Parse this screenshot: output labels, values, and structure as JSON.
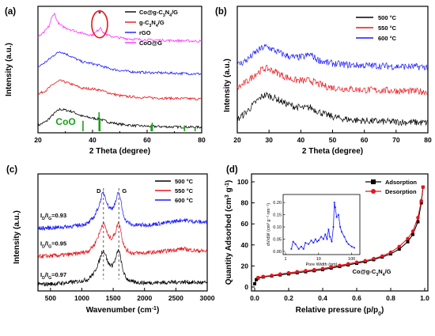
{
  "chart_data": [
    {
      "panel": "(a)",
      "type": "line",
      "xlabel": "2 Theta  (degree)",
      "ylabel": "Intensity (a.u.)",
      "xlim": [
        20,
        80
      ],
      "xticks": [
        "20",
        "40",
        "60",
        "80"
      ],
      "legend_position": "top-right",
      "series": [
        {
          "name": "Co@g-C₃N₄/G",
          "color": "#000000",
          "x": [
            20,
            23,
            26,
            28,
            30,
            33,
            36,
            40,
            43,
            46,
            50,
            55,
            60,
            70,
            80
          ],
          "y": [
            0.3,
            0.6,
            1.2,
            1.5,
            1.45,
            1.3,
            1.0,
            0.85,
            0.75,
            0.55,
            0.4,
            0.3,
            0.25,
            0.2,
            0.18
          ]
        },
        {
          "name": "g-C₃N₄/G",
          "color": "#e8141a",
          "x": [
            20,
            23,
            26,
            28,
            30,
            33,
            36,
            40,
            43,
            46,
            50,
            55,
            60,
            70,
            80
          ],
          "y": [
            2.6,
            2.9,
            3.4,
            3.6,
            3.5,
            3.3,
            3.05,
            3.0,
            2.9,
            2.7,
            2.5,
            2.4,
            2.35,
            2.3,
            2.25
          ]
        },
        {
          "name": "rGO",
          "color": "#1a1aff",
          "x": [
            20,
            23,
            26,
            28,
            30,
            33,
            36,
            40,
            43,
            46,
            50,
            55,
            60,
            70,
            80
          ],
          "y": [
            4.6,
            5.0,
            5.5,
            5.75,
            5.6,
            5.3,
            5.0,
            4.85,
            4.7,
            4.5,
            4.35,
            4.25,
            4.2,
            4.15,
            4.1
          ]
        },
        {
          "name": "CoO@G",
          "color": "#ff33ff",
          "x": [
            20,
            22,
            24,
            25,
            26,
            27,
            28,
            30,
            33,
            36,
            40,
            42,
            43,
            44,
            46,
            50,
            55,
            60,
            70,
            80
          ],
          "y": [
            6.8,
            7.1,
            7.6,
            8.2,
            8.6,
            8.0,
            7.7,
            7.5,
            7.3,
            7.1,
            6.95,
            7.3,
            7.55,
            7.1,
            6.9,
            6.75,
            6.65,
            6.6,
            6.55,
            6.5
          ]
        }
      ],
      "reference_label": "CoO",
      "reference_color": "#18a018",
      "reference_sticks": [
        {
          "x": 36.5,
          "h": 0.55
        },
        {
          "x": 42.4,
          "h": 1.0
        },
        {
          "x": 42.7,
          "h": 0.7
        },
        {
          "x": 61.5,
          "h": 0.35
        },
        {
          "x": 61.9,
          "h": 0.45
        },
        {
          "x": 73.7,
          "h": 0.3
        },
        {
          "x": 77.6,
          "h": 0.22
        }
      ],
      "annotations": [
        "*"
      ]
    },
    {
      "panel": "(b)",
      "type": "line",
      "xlabel": "2 Theta (degree)",
      "ylabel": "Intensity (a.u.)",
      "xlim": [
        20,
        80
      ],
      "xticks": [
        "20",
        "30",
        "40",
        "50",
        "60",
        "70",
        "80"
      ],
      "legend_position": "top-right",
      "series": [
        {
          "name": "500 °C",
          "color": "#000000",
          "x": [
            20,
            23,
            26,
            28,
            29,
            30,
            32,
            35,
            38,
            41,
            43,
            45,
            48,
            52,
            56,
            60,
            65,
            70,
            75,
            80
          ],
          "y": [
            0.4,
            0.9,
            1.5,
            1.85,
            1.9,
            1.85,
            1.7,
            1.4,
            1.2,
            1.1,
            1.15,
            0.95,
            0.7,
            0.5,
            0.4,
            0.35,
            0.3,
            0.28,
            0.25,
            0.22
          ]
        },
        {
          "name": "550 °C",
          "color": "#e8141a",
          "x": [
            20,
            23,
            26,
            28,
            29,
            30,
            32,
            35,
            38,
            41,
            43,
            45,
            48,
            52,
            56,
            60,
            65,
            70,
            75,
            80
          ],
          "y": [
            2.3,
            2.7,
            3.2,
            3.45,
            3.5,
            3.45,
            3.3,
            3.0,
            2.8,
            2.75,
            2.78,
            2.6,
            2.4,
            2.3,
            2.25,
            2.2,
            2.18,
            2.15,
            2.12,
            2.1
          ]
        },
        {
          "name": "600 °C",
          "color": "#1a1aff",
          "x": [
            20,
            23,
            26,
            28,
            29,
            30,
            32,
            35,
            38,
            41,
            43,
            45,
            48,
            52,
            56,
            60,
            65,
            70,
            75,
            80
          ],
          "y": [
            3.7,
            4.0,
            4.5,
            4.75,
            4.8,
            4.75,
            4.55,
            4.3,
            4.15,
            4.2,
            4.35,
            4.05,
            3.85,
            3.75,
            3.7,
            3.68,
            3.65,
            3.62,
            3.6,
            3.58
          ]
        }
      ]
    },
    {
      "panel": "(c)",
      "type": "line",
      "xlabel": "Wavenumber (cm⁻¹)",
      "ylabel": "Intensity (a.u.)",
      "xlim": [
        300,
        3000
      ],
      "xticks": [
        "500",
        "1000",
        "1500",
        "2000",
        "2500",
        "3000"
      ],
      "legend_position": "top-right",
      "peak_labels": [
        "D",
        "G"
      ],
      "ratio_labels": [
        "I_D/I_G=0.93",
        "I_D/I_G=0.95",
        "I_D/I_G=0.97"
      ],
      "series": [
        {
          "name": "500 °C",
          "color": "#000000",
          "x": [
            300,
            600,
            900,
            1100,
            1200,
            1280,
            1320,
            1345,
            1370,
            1420,
            1480,
            1540,
            1570,
            1590,
            1610,
            1650,
            1700,
            1800,
            2000,
            2300,
            2600,
            2800,
            3000
          ],
          "y": [
            0.1,
            0.15,
            0.25,
            0.4,
            0.8,
            1.5,
            2.0,
            2.1,
            1.95,
            1.35,
            1.2,
            1.6,
            2.05,
            2.1,
            1.85,
            1.0,
            0.5,
            0.25,
            0.2,
            0.22,
            0.25,
            0.22,
            0.2
          ]
        },
        {
          "name": "550 °C",
          "color": "#e8141a",
          "x": [
            300,
            600,
            900,
            1100,
            1200,
            1280,
            1320,
            1345,
            1370,
            1420,
            1480,
            1540,
            1570,
            1590,
            1610,
            1650,
            1700,
            1800,
            2000,
            2300,
            2600,
            2800,
            3000
          ],
          "y": [
            1.75,
            1.8,
            1.9,
            2.05,
            2.45,
            3.1,
            3.6,
            3.7,
            3.55,
            2.95,
            2.8,
            3.2,
            3.65,
            3.75,
            3.5,
            2.7,
            2.15,
            1.95,
            1.95,
            2.05,
            2.2,
            2.1,
            2.05
          ]
        },
        {
          "name": "600 °C",
          "color": "#1a1aff",
          "x": [
            300,
            600,
            900,
            1100,
            1200,
            1280,
            1320,
            1345,
            1370,
            1420,
            1480,
            1540,
            1570,
            1590,
            1610,
            1650,
            1700,
            1800,
            2000,
            2300,
            2600,
            2800,
            3000
          ],
          "y": [
            3.4,
            3.45,
            3.55,
            3.7,
            4.1,
            4.8,
            5.35,
            5.5,
            5.3,
            4.7,
            4.55,
            4.95,
            5.4,
            5.5,
            5.25,
            4.4,
            3.85,
            3.6,
            3.6,
            3.7,
            3.9,
            3.8,
            3.75
          ]
        }
      ]
    },
    {
      "panel": "(d)",
      "type": "line",
      "xlabel": "Relative pressure (p/p₀)",
      "ylabel": "Quantity Adsorbed (cm³ g⁻¹)",
      "xlim": [
        0,
        1.0
      ],
      "ylim": [
        0,
        100
      ],
      "xticks": [
        "0.0",
        "0.2",
        "0.4",
        "0.6",
        "0.8",
        "1.0"
      ],
      "yticks": [
        "0",
        "20",
        "40",
        "60",
        "80",
        "100"
      ],
      "legend_position": "top-right",
      "sample_label": "Co@g-C₃N₄/G",
      "series": [
        {
          "name": "Adsorption",
          "color": "#000000",
          "marker": "square",
          "x": [
            0.0,
            0.01,
            0.02,
            0.05,
            0.1,
            0.15,
            0.2,
            0.25,
            0.3,
            0.35,
            0.4,
            0.45,
            0.5,
            0.55,
            0.6,
            0.65,
            0.7,
            0.75,
            0.8,
            0.85,
            0.9,
            0.93,
            0.96,
            0.98,
            0.99
          ],
          "y": [
            3,
            7,
            8.5,
            9.5,
            10.5,
            11.5,
            12.5,
            13.5,
            14.5,
            15.5,
            16.5,
            18,
            19.5,
            21,
            22.5,
            24,
            26,
            28.5,
            31.5,
            36,
            43,
            50,
            62,
            80,
            95
          ]
        },
        {
          "name": "Desorption",
          "color": "#e8141a",
          "marker": "circle",
          "x": [
            0.99,
            0.98,
            0.96,
            0.93,
            0.9,
            0.85,
            0.8,
            0.75,
            0.7,
            0.65,
            0.6,
            0.55,
            0.5,
            0.45,
            0.4,
            0.35,
            0.3,
            0.25,
            0.2,
            0.15,
            0.1,
            0.05,
            0.02
          ],
          "y": [
            95,
            82,
            66,
            53,
            46,
            38.5,
            33,
            29.5,
            27,
            25,
            23.5,
            22,
            20.5,
            19,
            17.5,
            16.5,
            15.5,
            14.5,
            13.5,
            12.3,
            11,
            10,
            9
          ]
        }
      ],
      "inset": {
        "xlabel": "Pore Width (nm)",
        "ylabel": "dV/dW (cm³ g⁻¹ nm⁻¹)",
        "xscale": "log",
        "xlim": [
          1,
          150
        ],
        "ylim": [
          0,
          0.22
        ],
        "xticks": [
          "1",
          "10",
          "100"
        ],
        "yticks": [
          "0.00",
          "0.05",
          "0.10",
          "0.15",
          "0.20"
        ],
        "x": [
          1.5,
          1.7,
          2.0,
          2.5,
          3.0,
          3.5,
          4.0,
          5.0,
          6.0,
          7.0,
          8.0,
          9.0,
          10,
          12,
          14,
          16,
          18,
          20,
          22,
          25,
          28,
          30,
          32,
          35,
          40,
          45,
          50,
          60,
          70,
          80,
          100,
          120
        ],
        "y": [
          0.01,
          0.04,
          0.03,
          0.01,
          0.02,
          0.01,
          0.035,
          0.03,
          0.045,
          0.035,
          0.05,
          0.04,
          0.045,
          0.06,
          0.05,
          0.07,
          0.05,
          0.09,
          0.06,
          0.04,
          0.1,
          0.2,
          0.18,
          0.14,
          0.15,
          0.1,
          0.08,
          0.06,
          0.04,
          0.03,
          0.02,
          0.015
        ]
      }
    }
  ]
}
